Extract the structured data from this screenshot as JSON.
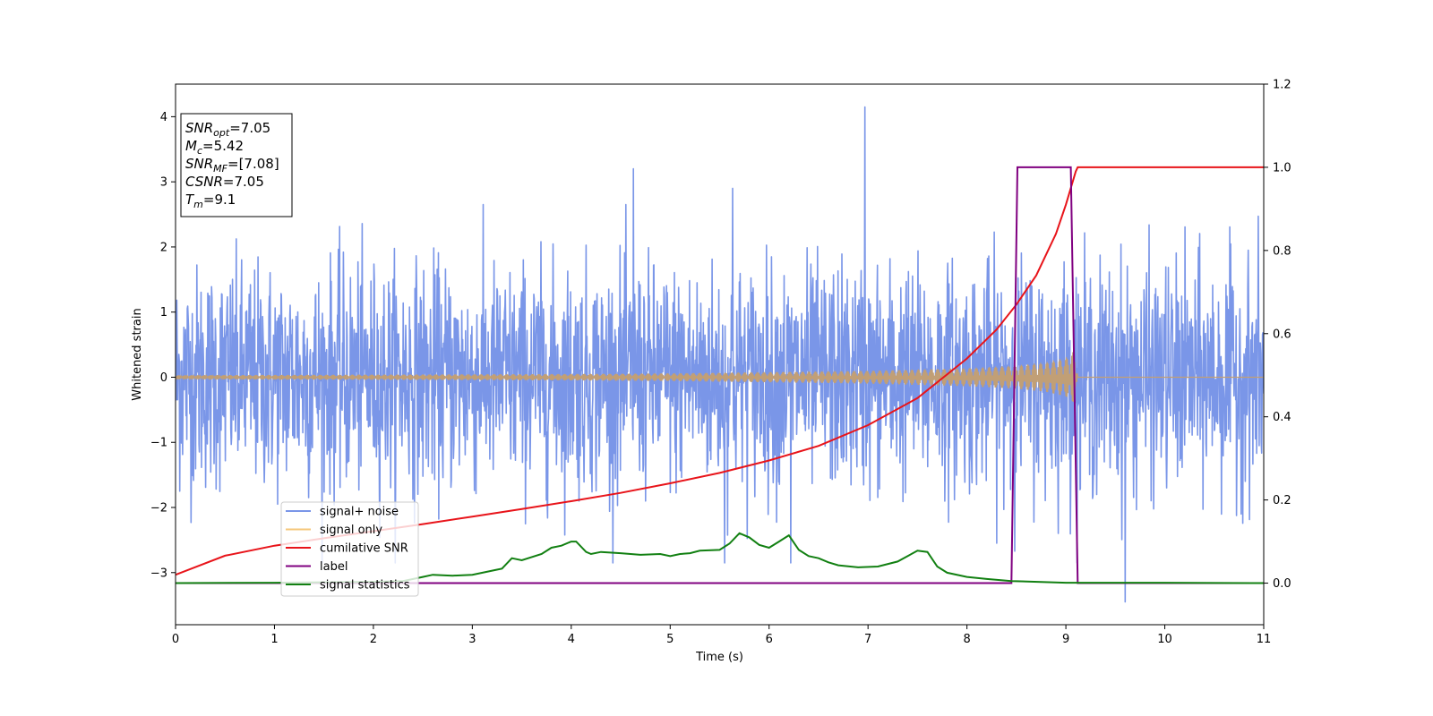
{
  "chart_data": {
    "type": "line",
    "xlabel": "Time (s)",
    "ylabel": "Whitened strain",
    "xlim": [
      0,
      11
    ],
    "ylim": [
      -3.8,
      4.5
    ],
    "y2lim": [
      -0.1,
      1.2
    ],
    "xticks": [
      0,
      1,
      2,
      3,
      4,
      5,
      6,
      7,
      8,
      9,
      10,
      11
    ],
    "yticks": [
      -3,
      -2,
      -1,
      0,
      1,
      2,
      3,
      4
    ],
    "y2ticks": [
      0.0,
      0.2,
      0.4,
      0.6,
      0.8,
      1.0,
      1.2
    ],
    "grid": false,
    "legend_position": "lower-left",
    "colors": {
      "signal_noise": "#7a96e8",
      "signal_only": "#f5c77a",
      "signal_fill": "#c19f76",
      "cumulative_snr": "#e8141a",
      "label": "#800080",
      "signal_statistics": "#128012"
    },
    "annotation": {
      "lines": [
        {
          "main": "SNR",
          "sub": "opt",
          "value": "=7.05"
        },
        {
          "main": "M",
          "sub": "c",
          "value": "=5.42"
        },
        {
          "main": "SNR",
          "sub": "MF",
          "value": "=[7.08]"
        },
        {
          "main": "CSNR",
          "sub": "",
          "value": "=7.05"
        },
        {
          "main": "T",
          "sub": "m",
          "value": "=9.1"
        }
      ]
    },
    "series": [
      {
        "name": "signal+ noise",
        "axis": "left",
        "style": "noise",
        "x_range": [
          0,
          11
        ],
        "y_range": [
          -3.45,
          4.15
        ],
        "sigma": 0.85,
        "peaks": [
          [
            6.97,
            4.15
          ],
          [
            4.63,
            3.2
          ],
          [
            5.63,
            2.9
          ],
          [
            9.6,
            -3.45
          ],
          [
            5.55,
            -2.85
          ],
          [
            6.22,
            -2.85
          ]
        ]
      },
      {
        "name": "signal only",
        "axis": "left",
        "style": "chirp",
        "envelope": {
          "x": [
            0,
            2,
            4,
            5,
            6,
            7,
            7.5,
            8,
            8.5,
            8.8,
            9.0,
            9.1,
            9.12,
            11
          ],
          "amp": [
            0.03,
            0.04,
            0.05,
            0.06,
            0.08,
            0.1,
            0.12,
            0.14,
            0.18,
            0.23,
            0.3,
            0.42,
            0.0,
            0.0
          ]
        }
      },
      {
        "name": "cumilative SNR",
        "axis": "right",
        "x": [
          0,
          0.5,
          1,
          1.5,
          2,
          2.5,
          3,
          3.5,
          4,
          4.5,
          5,
          5.5,
          6,
          6.5,
          7,
          7.5,
          8,
          8.3,
          8.5,
          8.7,
          8.9,
          9.0,
          9.1,
          9.12,
          11
        ],
        "y": [
          0.02,
          0.066,
          0.09,
          0.108,
          0.125,
          0.142,
          0.16,
          0.178,
          0.197,
          0.217,
          0.24,
          0.265,
          0.295,
          0.33,
          0.38,
          0.445,
          0.54,
          0.61,
          0.67,
          0.74,
          0.84,
          0.91,
          0.99,
          1.0,
          1.0
        ]
      },
      {
        "name": "label",
        "axis": "right",
        "x": [
          0,
          8.45,
          8.51,
          9.05,
          9.12,
          11
        ],
        "y": [
          0,
          0,
          1,
          1,
          0,
          0
        ]
      },
      {
        "name": "signal statistics",
        "axis": "right",
        "x": [
          0,
          1,
          2,
          2.3,
          2.5,
          2.6,
          2.8,
          3.0,
          3.3,
          3.4,
          3.5,
          3.7,
          3.8,
          3.9,
          4.0,
          4.05,
          4.15,
          4.2,
          4.3,
          4.5,
          4.7,
          4.9,
          5.0,
          5.1,
          5.2,
          5.3,
          5.5,
          5.6,
          5.7,
          5.8,
          5.9,
          6.0,
          6.1,
          6.2,
          6.3,
          6.4,
          6.5,
          6.6,
          6.7,
          6.9,
          7.1,
          7.3,
          7.5,
          7.6,
          7.7,
          7.8,
          8.0,
          8.2,
          8.45,
          9.0,
          10.0,
          11
        ],
        "y": [
          0.0,
          0.001,
          0.003,
          0.005,
          0.015,
          0.02,
          0.018,
          0.02,
          0.035,
          0.06,
          0.055,
          0.07,
          0.085,
          0.09,
          0.1,
          0.1,
          0.075,
          0.07,
          0.075,
          0.072,
          0.068,
          0.07,
          0.065,
          0.07,
          0.072,
          0.078,
          0.08,
          0.095,
          0.12,
          0.11,
          0.092,
          0.085,
          0.1,
          0.115,
          0.08,
          0.065,
          0.06,
          0.05,
          0.043,
          0.038,
          0.04,
          0.052,
          0.078,
          0.075,
          0.04,
          0.025,
          0.015,
          0.01,
          0.005,
          0.001,
          0.001,
          0.0
        ]
      }
    ]
  }
}
